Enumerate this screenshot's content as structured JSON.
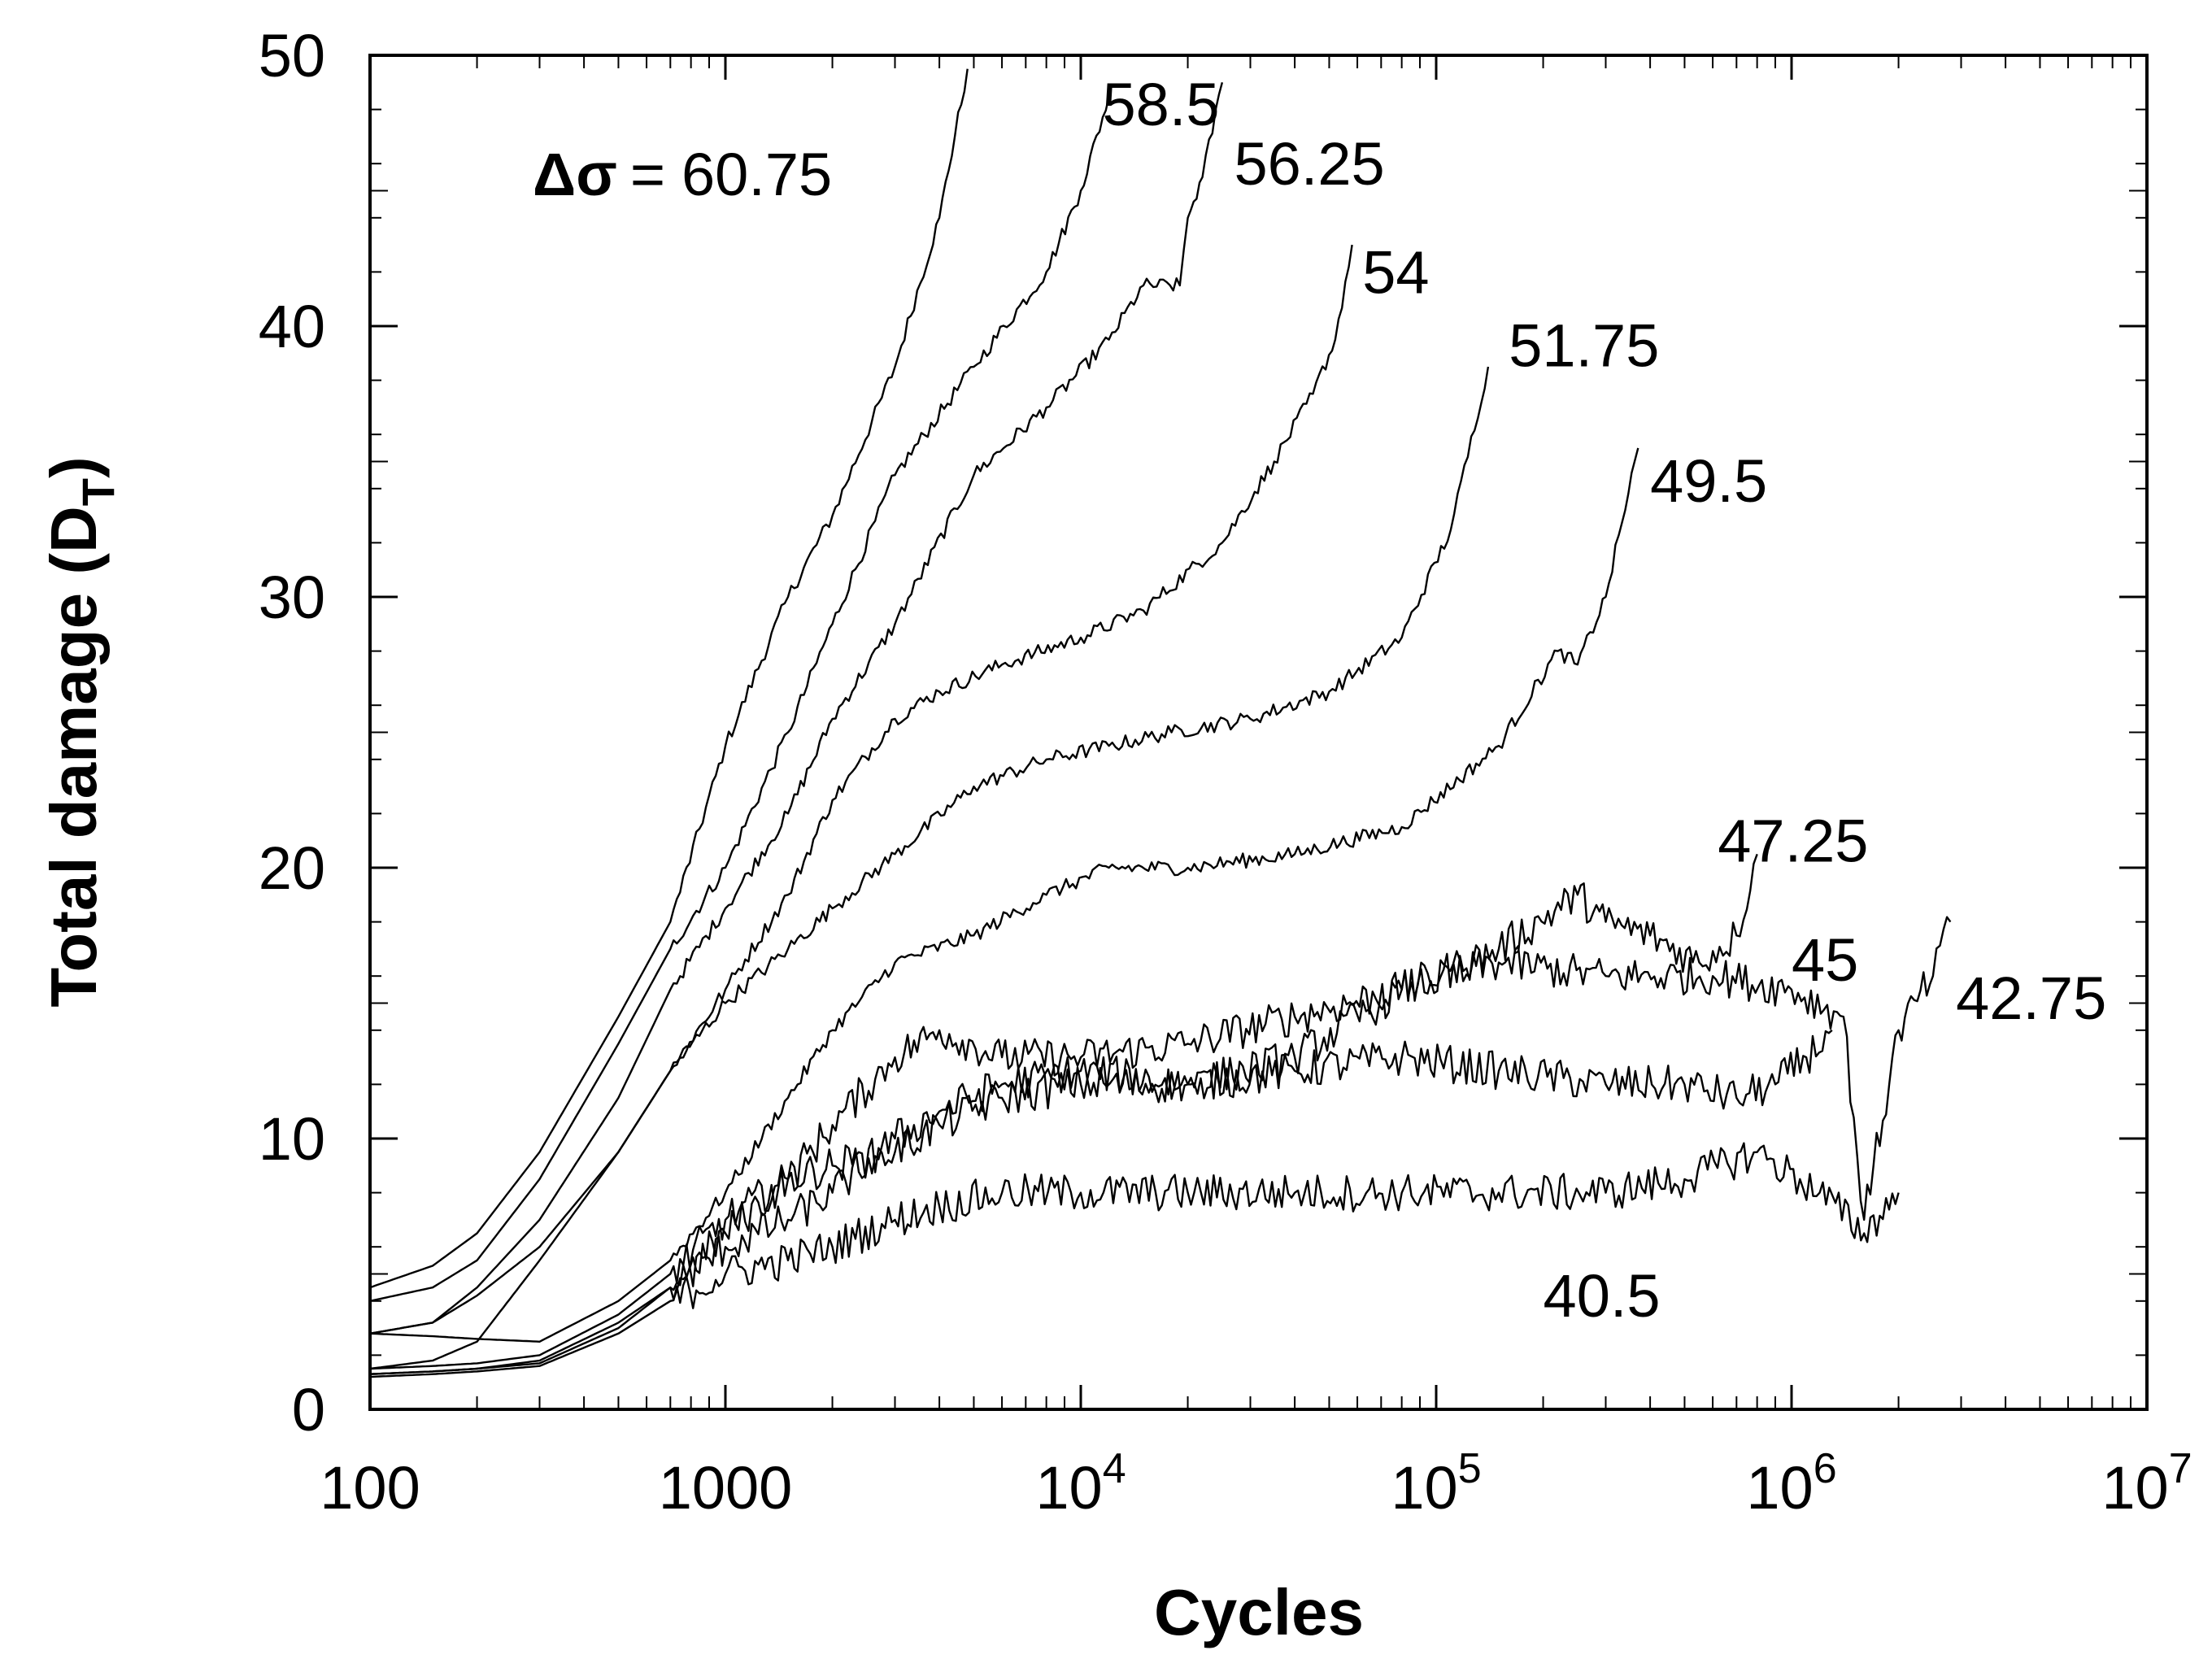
{
  "chart_data": {
    "type": "line",
    "xscale": "log",
    "xlim": [
      100,
      10000000
    ],
    "ylim": [
      0,
      50
    ],
    "xlabel": "Cycles",
    "ylabel": "Total damage (D",
    "ylabel_sub": "T",
    "ylabel_close": ")",
    "x_ticks": [
      {
        "value": 100,
        "base": "100",
        "exp": ""
      },
      {
        "value": 1000,
        "base": "1000",
        "exp": ""
      },
      {
        "value": 10000,
        "base": "10",
        "exp": "4"
      },
      {
        "value": 100000,
        "base": "10",
        "exp": "5"
      },
      {
        "value": 1000000,
        "base": "10",
        "exp": "6"
      },
      {
        "value": 10000000,
        "base": "10",
        "exp": "7"
      }
    ],
    "y_ticks": [
      "0",
      "10",
      "20",
      "30",
      "40",
      "50"
    ],
    "delta_symbol": "Δσ",
    "delta_equals": "=",
    "series": [
      {
        "name": "60.75",
        "label_x": 4500,
        "label_y": 45.5,
        "x": [
          100,
          150,
          200,
          300,
          500,
          700,
          1000,
          1500,
          2000,
          3000,
          4000,
          4800
        ],
        "y": [
          4.5,
          5.3,
          6.5,
          9.5,
          14.5,
          18.0,
          24.5,
          30.0,
          33.0,
          38.5,
          44.0,
          49.5
        ]
      },
      {
        "name": "58.5",
        "label_x": 11500,
        "label_y": 48.2,
        "x": [
          100,
          150,
          200,
          300,
          500,
          700,
          1000,
          1500,
          2000,
          3000,
          5000,
          8000,
          10000,
          12000
        ],
        "y": [
          4.0,
          4.5,
          5.5,
          8.5,
          13.5,
          17.0,
          20.0,
          25.0,
          29.0,
          34.5,
          38.5,
          42.0,
          45.0,
          48.5
        ]
      },
      {
        "name": "56.25",
        "label_x": 27000,
        "label_y": 46.0,
        "x": [
          100,
          150,
          200,
          300,
          500,
          700,
          1000,
          1500,
          2000,
          3000,
          5000,
          8000,
          12000,
          15000,
          19000,
          20000,
          22000,
          25000
        ],
        "y": [
          2.8,
          3.2,
          4.5,
          7.0,
          11.5,
          15.5,
          18.5,
          22.0,
          25.5,
          29.0,
          34.5,
          37.0,
          39.5,
          41.5,
          41.5,
          44.0,
          45.5,
          49.0
        ]
      },
      {
        "name": "54",
        "label_x": 62000,
        "label_y": 42.0,
        "x": [
          100,
          150,
          200,
          300,
          500,
          700,
          1000,
          1500,
          2000,
          3000,
          4000,
          6000,
          10000,
          15000,
          25000,
          35000,
          45000,
          52000,
          58000
        ],
        "y": [
          2.8,
          3.2,
          4.2,
          6.0,
          9.5,
          12.5,
          15.5,
          19.0,
          22.5,
          25.5,
          26.5,
          27.5,
          28.5,
          29.5,
          32.0,
          35.0,
          37.5,
          39.5,
          43.0
        ]
      },
      {
        "name": "51.75",
        "label_x": 160000,
        "label_y": 39.3,
        "x": [
          100,
          150,
          200,
          300,
          500,
          700,
          1000,
          1500,
          2000,
          3000,
          5000,
          8000,
          12000,
          18000,
          30000,
          50000,
          80000,
          110000,
          140000
        ],
        "y": [
          1.5,
          1.8,
          2.5,
          5.5,
          9.5,
          12.5,
          15.0,
          17.0,
          18.5,
          20.5,
          23.0,
          24.0,
          24.5,
          25.0,
          25.5,
          26.5,
          28.5,
          32.5,
          38.5
        ]
      },
      {
        "name": "49.5",
        "label_x": 400000,
        "label_y": 34.3,
        "x": [
          100,
          150,
          200,
          300,
          500,
          700,
          1000,
          1500,
          2000,
          3000,
          5000,
          8000,
          12000,
          20000,
          40000,
          80000,
          150000,
          220000,
          250000,
          300000,
          370000
        ],
        "y": [
          2.8,
          2.7,
          2.6,
          2.5,
          4.0,
          5.5,
          8.0,
          11.5,
          14.0,
          16.5,
          17.5,
          19.0,
          20.0,
          20.0,
          20.5,
          21.5,
          24.5,
          28.0,
          27.5,
          30.0,
          35.5
        ]
      },
      {
        "name": "47.25",
        "label_x": 620000,
        "label_y": 21.0,
        "x": [
          100,
          150,
          200,
          300,
          500,
          700,
          1000,
          1500,
          2000,
          3000,
          4000,
          6000,
          10000,
          20000,
          40000,
          80000,
          150000,
          250000,
          300000,
          400000,
          550000,
          700000,
          800000
        ],
        "y": [
          1.3,
          1.4,
          1.5,
          1.8,
          3.2,
          4.5,
          6.5,
          8.5,
          10.5,
          13.0,
          14.0,
          13.0,
          13.0,
          13.5,
          14.5,
          15.5,
          17.0,
          19.0,
          18.0,
          17.5,
          16.5,
          17.5,
          20.5
        ]
      },
      {
        "name": "45",
        "label_x": 1000000,
        "label_y": 16.6,
        "x": [
          100,
          150,
          200,
          300,
          500,
          700,
          1000,
          1500,
          2000,
          3000,
          4000,
          6000,
          10000,
          20000,
          40000,
          80000,
          150000,
          300000,
          500000,
          700000,
          900000,
          1100000,
          1300000
        ],
        "y": [
          1.5,
          1.6,
          1.7,
          2.0,
          3.5,
          5.0,
          7.0,
          8.5,
          9.0,
          9.5,
          10.5,
          11.5,
          12.0,
          12.0,
          12.5,
          13.0,
          12.5,
          12.0,
          12.0,
          11.5,
          12.0,
          13.0,
          14.0
        ]
      },
      {
        "name": "42.75",
        "label_x": 2900000,
        "label_y": 15.2,
        "x": [
          100,
          150,
          200,
          300,
          500,
          700,
          1000,
          1500,
          2000,
          3000,
          4000,
          6000,
          10000,
          20000,
          40000,
          80000,
          150000,
          300000,
          600000,
          1000000,
          1400000,
          1600000,
          2000000,
          2500000,
          2800000
        ],
        "y": [
          1.3,
          1.4,
          1.5,
          1.7,
          3.0,
          4.5,
          6.0,
          7.0,
          8.0,
          10.0,
          11.0,
          12.0,
          12.5,
          12.0,
          13.0,
          15.5,
          16.5,
          16.0,
          16.0,
          15.5,
          14.5,
          7.0,
          14.0,
          16.0,
          18.0
        ]
      },
      {
        "name": "40.5",
        "label_x": 200000,
        "label_y": 4.2,
        "x": [
          100,
          150,
          200,
          300,
          500,
          700,
          1000,
          1500,
          2000,
          3000,
          4000,
          6000,
          10000,
          20000,
          40000,
          80000,
          150000,
          300000,
          500000,
          800000,
          1200000,
          1600000,
          2000000
        ],
        "y": [
          1.2,
          1.3,
          1.4,
          1.6,
          2.8,
          4.0,
          5.0,
          5.5,
          6.0,
          7.0,
          7.5,
          8.0,
          8.0,
          8.0,
          8.0,
          8.0,
          8.0,
          8.0,
          8.5,
          9.5,
          8.0,
          6.5,
          8.0
        ]
      }
    ]
  }
}
